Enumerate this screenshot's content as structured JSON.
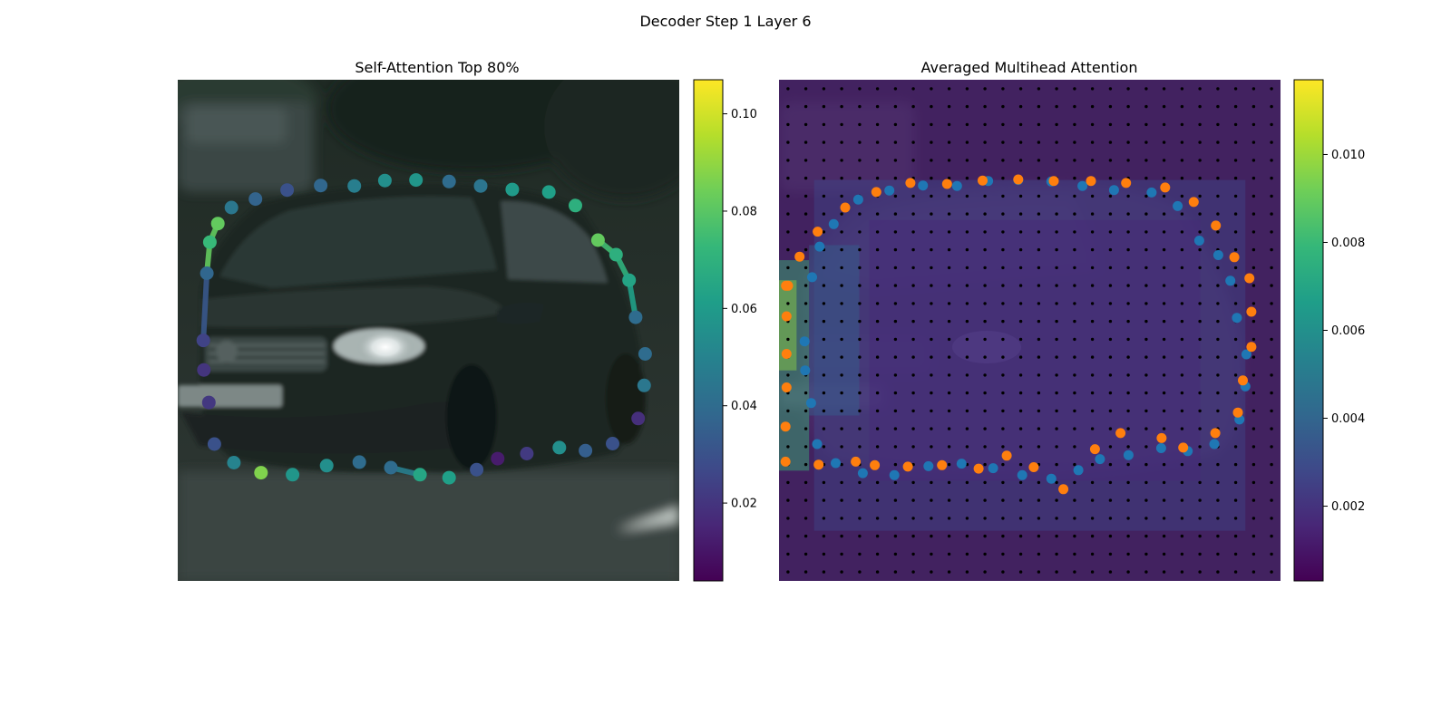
{
  "figure": {
    "suptitle": "Decoder Step 1 Layer 6"
  },
  "colormap": {
    "name": "viridis",
    "stops": [
      "#440154",
      "#482777",
      "#3e4989",
      "#31688e",
      "#26828e",
      "#1f9e89",
      "#35b779",
      "#6ece58",
      "#b5de2b",
      "#fde725"
    ]
  },
  "chart_data": [
    {
      "type": "scatter",
      "title": "Self-Attention Top 80%",
      "background": "blurred street scene: dark green sedan (front three-quarter view) on an asphalt road, trees behind",
      "axes_visible": false,
      "xlim": [
        0,
        1
      ],
      "ylim": [
        0,
        1
      ],
      "colorbar": {
        "min": 0.004,
        "max": 0.107,
        "ticks": [
          0.02,
          0.04,
          0.06,
          0.08,
          0.1
        ],
        "tick_labels": [
          "0.02",
          "0.04",
          "0.06",
          "0.08",
          "0.10"
        ]
      },
      "series": [
        {
          "marker": "circle",
          "points": [
            [
              0.058,
              0.386,
              0.038
            ],
            [
              0.064,
              0.324,
              0.073
            ],
            [
              0.08,
              0.287,
              0.082
            ],
            [
              0.107,
              0.255,
              0.045
            ],
            [
              0.155,
              0.238,
              0.037
            ],
            [
              0.218,
              0.22,
              0.03
            ],
            [
              0.285,
              0.211,
              0.038
            ],
            [
              0.352,
              0.212,
              0.048
            ],
            [
              0.413,
              0.201,
              0.055
            ],
            [
              0.475,
              0.2,
              0.058
            ],
            [
              0.541,
              0.203,
              0.04
            ],
            [
              0.604,
              0.212,
              0.044
            ],
            [
              0.667,
              0.219,
              0.06
            ],
            [
              0.74,
              0.224,
              0.062
            ],
            [
              0.793,
              0.251,
              0.069
            ],
            [
              0.838,
              0.32,
              0.082
            ],
            [
              0.874,
              0.349,
              0.069
            ],
            [
              0.9,
              0.4,
              0.064
            ],
            [
              0.913,
              0.474,
              0.04
            ],
            [
              0.932,
              0.547,
              0.04
            ],
            [
              0.93,
              0.61,
              0.045
            ],
            [
              0.918,
              0.676,
              0.018
            ],
            [
              0.867,
              0.726,
              0.03
            ],
            [
              0.813,
              0.74,
              0.035
            ],
            [
              0.761,
              0.734,
              0.055
            ],
            [
              0.696,
              0.746,
              0.022
            ],
            [
              0.638,
              0.756,
              0.012
            ],
            [
              0.596,
              0.778,
              0.03
            ],
            [
              0.541,
              0.794,
              0.062
            ],
            [
              0.483,
              0.788,
              0.065
            ],
            [
              0.425,
              0.774,
              0.04
            ],
            [
              0.362,
              0.763,
              0.04
            ],
            [
              0.297,
              0.77,
              0.055
            ],
            [
              0.229,
              0.788,
              0.058
            ],
            [
              0.166,
              0.784,
              0.087
            ],
            [
              0.112,
              0.764,
              0.05
            ],
            [
              0.073,
              0.727,
              0.03
            ],
            [
              0.062,
              0.644,
              0.021
            ],
            [
              0.052,
              0.579,
              0.02
            ],
            [
              0.051,
              0.52,
              0.025
            ]
          ],
          "highlight_links": [
            [
              1,
              0,
              0.082
            ],
            [
              1,
              2,
              0.082
            ],
            [
              15,
              16,
              0.075
            ],
            [
              16,
              17,
              0.07
            ],
            [
              17,
              18,
              0.062
            ],
            [
              29,
              30,
              0.048
            ],
            [
              0,
              39,
              0.032
            ]
          ]
        }
      ]
    },
    {
      "type": "heatmap",
      "title": "Averaged Multihead Attention",
      "background": "same street scene rendered with a purple attention overlay",
      "axes_visible": false,
      "xlim": [
        0,
        1
      ],
      "ylim": [
        0,
        1
      ],
      "grid_points": 28,
      "colorbar": {
        "min": 0.0003,
        "max": 0.0117,
        "ticks": [
          0.002,
          0.004,
          0.006,
          0.008,
          0.01
        ],
        "tick_labels": [
          "0.002",
          "0.004",
          "0.006",
          "0.008",
          "0.010"
        ]
      },
      "heat_regions": [
        [
          0.0,
          0.0,
          1.0,
          1.0,
          0.0012
        ],
        [
          0.07,
          0.2,
          0.86,
          0.7,
          0.0028
        ],
        [
          0.18,
          0.28,
          0.66,
          0.52,
          0.0016
        ],
        [
          0.0,
          0.36,
          0.06,
          0.42,
          0.008
        ],
        [
          0.0,
          0.4,
          0.035,
          0.18,
          0.0098
        ],
        [
          0.06,
          0.33,
          0.1,
          0.34,
          0.0038
        ]
      ],
      "series": [
        {
          "name": "",
          "color": "#1f77b4",
          "points": [
            [
              0.0,
              0.0
            ],
            [
              0.066,
              0.394
            ],
            [
              0.081,
              0.333
            ],
            [
              0.109,
              0.288
            ],
            [
              0.158,
              0.239
            ],
            [
              0.22,
              0.221
            ],
            [
              0.287,
              0.211
            ],
            [
              0.355,
              0.212
            ],
            [
              0.417,
              0.202
            ],
            [
              0.477,
              0.2
            ],
            [
              0.543,
              0.203
            ],
            [
              0.605,
              0.212
            ],
            [
              0.668,
              0.22
            ],
            [
              0.743,
              0.225
            ],
            [
              0.795,
              0.252
            ],
            [
              0.838,
              0.321
            ],
            [
              0.876,
              0.35
            ],
            [
              0.9,
              0.401
            ],
            [
              0.913,
              0.475
            ],
            [
              0.932,
              0.548
            ],
            [
              0.93,
              0.612
            ],
            [
              0.918,
              0.678
            ],
            [
              0.868,
              0.727
            ],
            [
              0.815,
              0.741
            ],
            [
              0.762,
              0.735
            ],
            [
              0.697,
              0.749
            ],
            [
              0.64,
              0.757
            ],
            [
              0.597,
              0.779
            ],
            [
              0.543,
              0.796
            ],
            [
              0.485,
              0.789
            ],
            [
              0.427,
              0.775
            ],
            [
              0.364,
              0.766
            ],
            [
              0.298,
              0.771
            ],
            [
              0.23,
              0.789
            ],
            [
              0.167,
              0.785
            ],
            [
              0.113,
              0.765
            ],
            [
              0.076,
              0.727
            ],
            [
              0.064,
              0.645
            ],
            [
              0.052,
              0.58
            ],
            [
              0.051,
              0.522
            ]
          ]
        },
        {
          "name": "",
          "color": "#ff7f0e",
          "points": [
            [
              0.014,
              0.411
            ],
            [
              0.041,
              0.353
            ],
            [
              0.077,
              0.303
            ],
            [
              0.132,
              0.255
            ],
            [
              0.194,
              0.224
            ],
            [
              0.262,
              0.206
            ],
            [
              0.335,
              0.208
            ],
            [
              0.406,
              0.201
            ],
            [
              0.477,
              0.199
            ],
            [
              0.548,
              0.202
            ],
            [
              0.622,
              0.202
            ],
            [
              0.692,
              0.206
            ],
            [
              0.77,
              0.215
            ],
            [
              0.827,
              0.244
            ],
            [
              0.871,
              0.291
            ],
            [
              0.908,
              0.354
            ],
            [
              0.938,
              0.396
            ],
            [
              0.942,
              0.463
            ],
            [
              0.942,
              0.533
            ],
            [
              0.925,
              0.6
            ],
            [
              0.915,
              0.664
            ],
            [
              0.87,
              0.705
            ],
            [
              0.806,
              0.734
            ],
            [
              0.763,
              0.715
            ],
            [
              0.681,
              0.705
            ],
            [
              0.63,
              0.737
            ],
            [
              0.567,
              0.817
            ],
            [
              0.508,
              0.773
            ],
            [
              0.454,
              0.75
            ],
            [
              0.398,
              0.776
            ],
            [
              0.325,
              0.769
            ],
            [
              0.257,
              0.772
            ],
            [
              0.191,
              0.769
            ],
            [
              0.153,
              0.762
            ],
            [
              0.079,
              0.768
            ],
            [
              0.013,
              0.762
            ],
            [
              0.013,
              0.692
            ],
            [
              0.015,
              0.614
            ],
            [
              0.015,
              0.547
            ],
            [
              0.015,
              0.472
            ],
            [
              0.018,
              0.411
            ]
          ]
        }
      ]
    }
  ]
}
